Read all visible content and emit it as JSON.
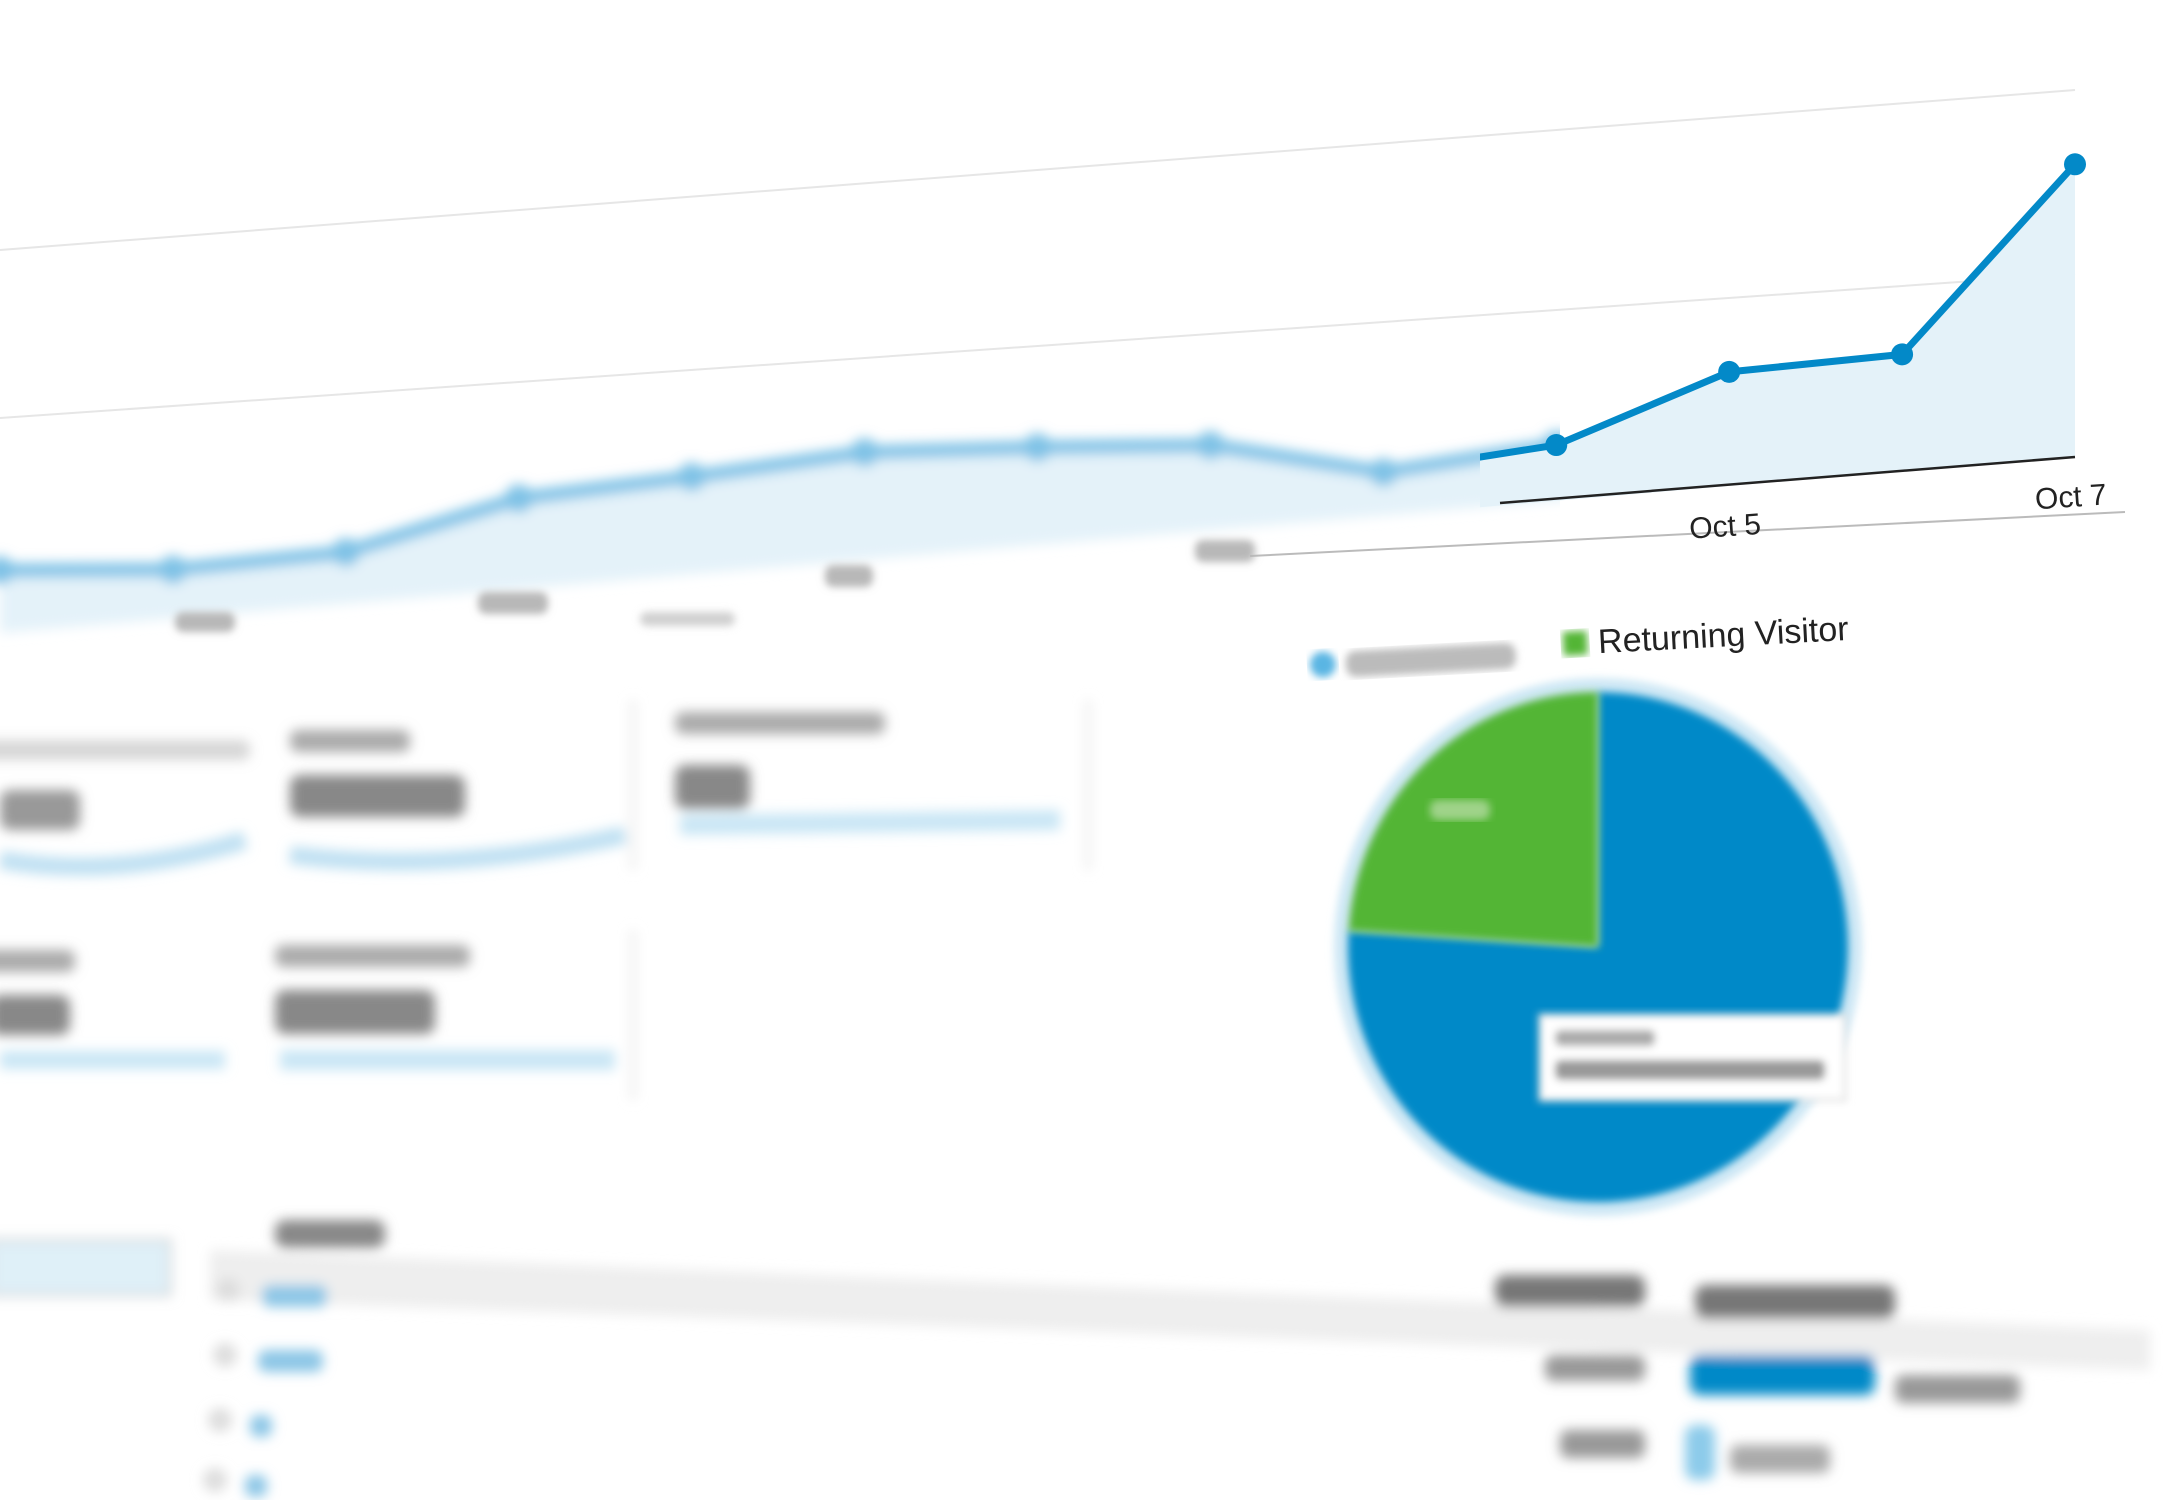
{
  "chart_data": [
    {
      "type": "area",
      "x_labels": [
        "",
        "",
        "",
        "",
        "",
        "",
        "",
        "",
        "",
        "",
        "Oct 5",
        "",
        "Oct 7"
      ],
      "values": [
        45,
        35,
        37,
        65,
        70,
        77,
        70,
        61,
        31,
        40,
        82,
        84,
        210
      ],
      "grid": true,
      "color": "#0389c8",
      "fill": "#e4f2f9"
    },
    {
      "type": "pie",
      "legend": [
        {
          "label": "",
          "color": "#0389c8"
        },
        {
          "label": "Returning Visitor",
          "color": "#52b535"
        }
      ],
      "values": [
        76,
        24
      ],
      "colors": [
        "#0389c8",
        "#52b535"
      ],
      "legend_placement": "top"
    }
  ],
  "table": {
    "rows": [
      {
        "bar_fraction": 0.86,
        "color": "#0389c8"
      },
      {
        "bar_fraction": 0.14,
        "color": "#8ccbea"
      }
    ]
  }
}
